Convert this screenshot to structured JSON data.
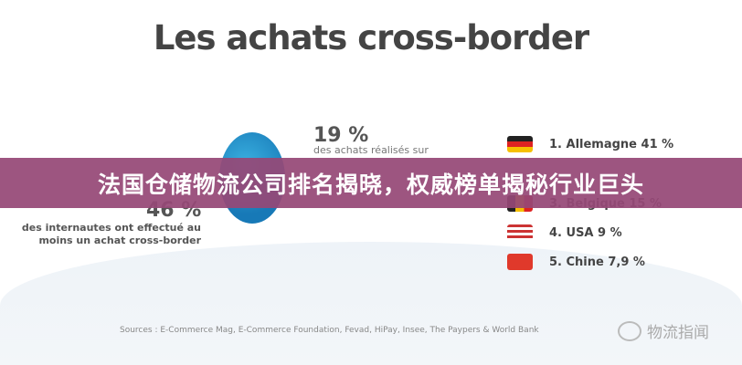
{
  "title": "Les achats cross-border",
  "stat1": {
    "value": "19 %",
    "text": "des achats réalisés sur"
  },
  "stat2": {
    "value": "46 %",
    "line1": "des internautes ont effectué au",
    "line2": "moins un achat cross-border"
  },
  "ranking": [
    {
      "label": "1. Allemagne 41 %",
      "flag": "germany-flag-icon"
    },
    {
      "label": "3. Belgique 15 %",
      "flag": "belgium-flag-icon"
    },
    {
      "label": "4. USA 9 %",
      "flag": "usa-flag-icon"
    },
    {
      "label": "5. Chine 7,9 %",
      "flag": "china-flag-icon"
    }
  ],
  "banner": "法国仓储物流公司排名揭晓，权威榜单揭秘行业巨头",
  "banner_color": "#964876",
  "sources": "Sources : E-Commerce Mag, E-Commerce Foundation, Fevad, HiPay, Insee, The Paypers & World Bank",
  "watermark": "物流指闻"
}
